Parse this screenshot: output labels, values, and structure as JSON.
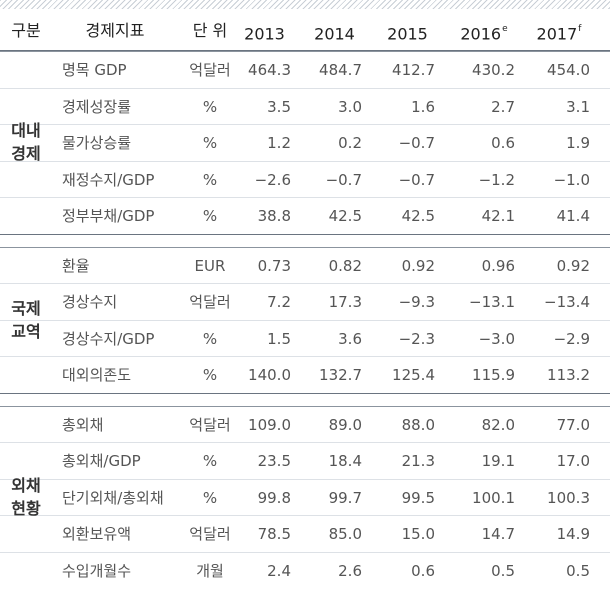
{
  "header": {
    "category": "구분",
    "indicator": "경제지표",
    "unit": "단 위",
    "years": [
      {
        "label": "2013",
        "sup": ""
      },
      {
        "label": "2014",
        "sup": ""
      },
      {
        "label": "2015",
        "sup": ""
      },
      {
        "label": "2016",
        "sup": "e"
      },
      {
        "label": "2017",
        "sup": "f"
      }
    ]
  },
  "groups": [
    {
      "label1": "대내",
      "label2": "경제",
      "rows": [
        {
          "indicator": "명목 GDP",
          "unit": "억달러",
          "values": [
            "464.3",
            "484.7",
            "412.7",
            "430.2",
            "454.0"
          ]
        },
        {
          "indicator": "경제성장률",
          "unit": "%",
          "values": [
            "3.5",
            "3.0",
            "1.6",
            "2.7",
            "3.1"
          ]
        },
        {
          "indicator": "물가상승률",
          "unit": "%",
          "values": [
            "1.2",
            "0.2",
            "−0.7",
            "0.6",
            "1.9"
          ]
        },
        {
          "indicator": "재정수지/GDP",
          "unit": "%",
          "values": [
            "−2.6",
            "−0.7",
            "−0.7",
            "−1.2",
            "−1.0"
          ]
        },
        {
          "indicator": "정부부채/GDP",
          "unit": "%",
          "values": [
            "38.8",
            "42.5",
            "42.5",
            "42.1",
            "41.4"
          ]
        }
      ]
    },
    {
      "label1": "국제",
      "label2": "교역",
      "rows": [
        {
          "indicator": "환율",
          "unit": "EUR",
          "values": [
            "0.73",
            "0.82",
            "0.92",
            "0.96",
            "0.92"
          ]
        },
        {
          "indicator": "경상수지",
          "unit": "억달러",
          "values": [
            "7.2",
            "17.3",
            "−9.3",
            "−13.1",
            "−13.4"
          ]
        },
        {
          "indicator": "경상수지/GDP",
          "unit": "%",
          "values": [
            "1.5",
            "3.6",
            "−2.3",
            "−3.0",
            "−2.9"
          ]
        },
        {
          "indicator": "대외의존도",
          "unit": "%",
          "values": [
            "140.0",
            "132.7",
            "125.4",
            "115.9",
            "113.2"
          ]
        }
      ]
    },
    {
      "label1": "외채",
      "label2": "현황",
      "rows": [
        {
          "indicator": "총외채",
          "unit": "억달러",
          "values": [
            "109.0",
            "89.0",
            "88.0",
            "82.0",
            "77.0"
          ]
        },
        {
          "indicator": "총외채/GDP",
          "unit": "%",
          "values": [
            "23.5",
            "18.4",
            "21.3",
            "19.1",
            "17.0"
          ]
        },
        {
          "indicator": "단기외채/총외채",
          "unit": "%",
          "values": [
            "99.8",
            "99.7",
            "99.5",
            "100.1",
            "100.3"
          ]
        },
        {
          "indicator": "외환보유액",
          "unit": "억달러",
          "values": [
            "78.5",
            "85.0",
            "15.0",
            "14.7",
            "14.9"
          ]
        },
        {
          "indicator": "수입개월수",
          "unit": "개월",
          "values": [
            "2.4",
            "2.6",
            "0.6",
            "0.5",
            "0.5"
          ]
        }
      ]
    }
  ]
}
